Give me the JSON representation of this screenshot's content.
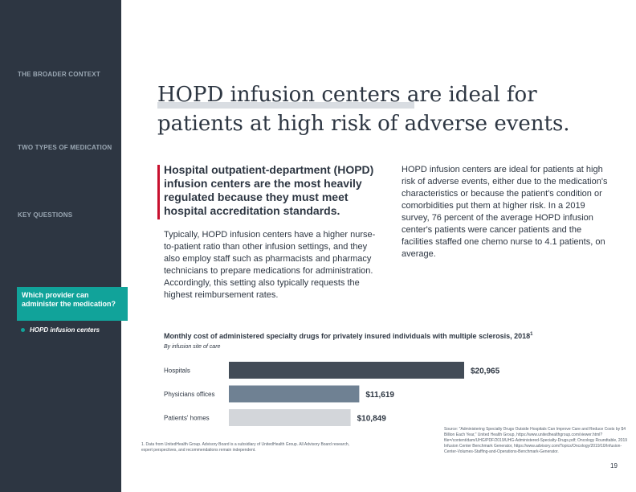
{
  "sidebar": {
    "items": [
      "THE BROADER CONTEXT",
      "TWO TYPES OF MEDICATION",
      "KEY QUESTIONS"
    ],
    "active_section": "Which provider can administer the medication?",
    "active_subitem": "HOPD infusion centers",
    "accent_color": "#11a39a",
    "background_color": "#2d3642"
  },
  "title": "HOPD infusion centers are ideal for patients at high risk of adverse events.",
  "lead": "Hospital outpatient-department (HOPD) infusion centers are the most heavily regulated because they must meet hospital accreditation standards.",
  "body_left": "Typically, HOPD infusion centers have a higher nurse-to-patient ratio than other infusion settings, and they also employ staff such as pharmacists and pharmacy technicians to prepare medications for administration. Accordingly, this setting also typically requests the highest reimbursement rates.",
  "body_right": "HOPD infusion centers are ideal for patients at high risk of adverse events, either due to the medication's characteristics or because the patient's condition or comorbidities put them at higher risk. In a 2019 survey, 76 percent of the average HOPD infusion center's patients were cancer patients and the facilities staffed one chemo nurse to 4.1 patients, on average.",
  "chart_data": {
    "type": "bar",
    "orientation": "horizontal",
    "title": "Monthly cost of administered specialty drugs for privately insured individuals with multiple sclerosis, 2018",
    "title_superscript": "1",
    "subtitle": "By infusion site of care",
    "categories": [
      "Hospitals",
      "Physicians offices",
      "Patients' homes"
    ],
    "values": [
      20965,
      11619,
      10849
    ],
    "value_labels": [
      "$20,965",
      "$11,619",
      "$10,849"
    ],
    "colors": [
      "#434c57",
      "#6f8193",
      "#d3d6da"
    ],
    "xlim": [
      0,
      20965
    ]
  },
  "footnote": "1. Data from UnitedHealth Group. Advisory Board is a subsidiary of UnitedHealth Group. All Advisory Board research, expert perspectives, and recommendations remain independent.",
  "source": "Source: \"Administering Specialty Drugs Outside Hospitals Can Improve Care and Reduce Costs by $4 Billion Each Year,\" United Health Group, https://www.unitedhealthgroup.com/viewer.html?file=/content/dam/UHG/PDF/2019/UHG-Administered-Specialty-Drugs.pdf; Oncology Roundtable, 2019 Infusion Center Benchmark Generator, https://www.advisory.com/Topics/Oncology/2019/10/Infusion-Center-Volumes-Staffing-and-Operations-Benchmark-Generator.",
  "page_number": "19"
}
